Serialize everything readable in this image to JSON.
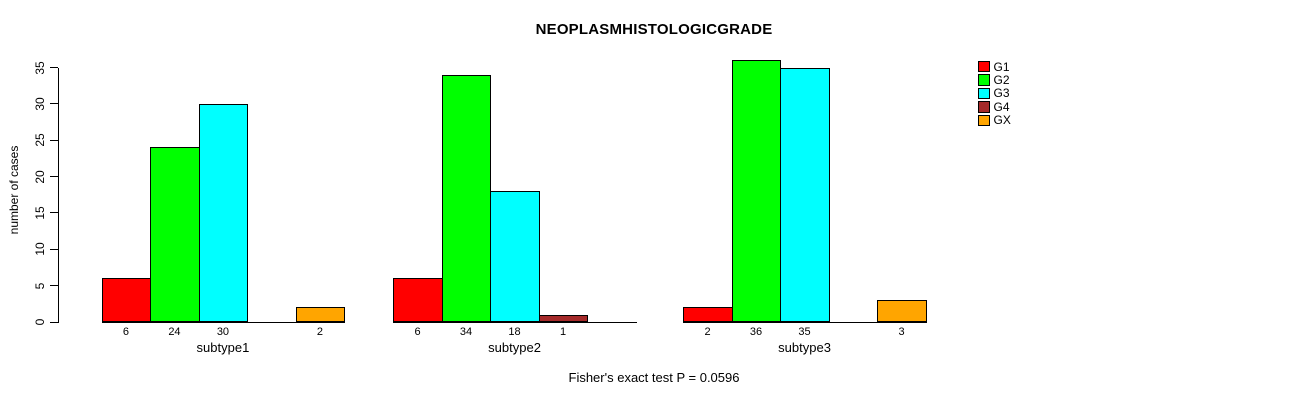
{
  "chart_data": {
    "type": "bar",
    "title": "NEOPLASMHISTOLOGICGRADE",
    "ylabel": "number of cases",
    "xlabel": "",
    "ylim": [
      0,
      35
    ],
    "yticks": [
      0,
      5,
      10,
      15,
      20,
      25,
      30,
      35
    ],
    "grid": false,
    "legend_position": "top-right",
    "categories": [
      "subtype1",
      "subtype2",
      "subtype3"
    ],
    "series": [
      {
        "name": "G1",
        "color": "#FF0000",
        "values": [
          6,
          6,
          2
        ]
      },
      {
        "name": "G2",
        "color": "#00FF00",
        "values": [
          24,
          34,
          36
        ]
      },
      {
        "name": "G3",
        "color": "#00FFFF",
        "values": [
          30,
          18,
          35
        ]
      },
      {
        "name": "G4",
        "color": "#A52A2A",
        "values": [
          0,
          1,
          0
        ]
      },
      {
        "name": "GX",
        "color": "#FFA500",
        "values": [
          2,
          0,
          3
        ]
      }
    ],
    "bar_value_labels": "shown under each bar, hidden when value is 0",
    "annotation": "Fisher's exact test P = 0.0596"
  }
}
